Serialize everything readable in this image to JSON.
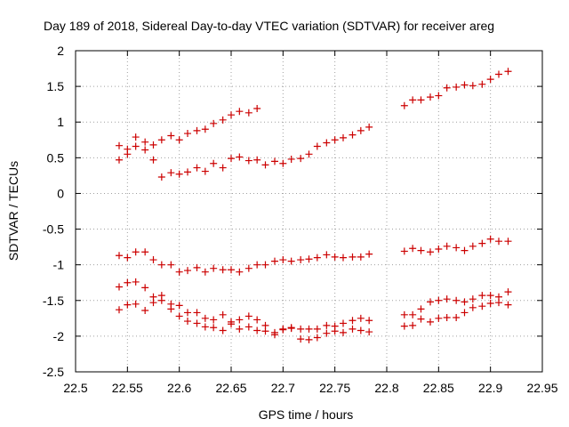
{
  "chart_data": {
    "type": "scatter",
    "title": "Day 189 of 2018, Sidereal Day-to-day VTEC variation (SDTVAR) for receiver areg",
    "xlabel": "GPS time / hours",
    "ylabel": "SDTVAR / TECUs",
    "xlim": [
      22.5,
      22.95
    ],
    "ylim": [
      -2.5,
      2
    ],
    "xticks": [
      22.5,
      22.55,
      22.6,
      22.65,
      22.7,
      22.75,
      22.8,
      22.85,
      22.9,
      22.95
    ],
    "xtick_labels": [
      "22.5",
      "22.55",
      "22.6",
      "22.65",
      "22.7",
      "22.75",
      "22.8",
      "22.85",
      "22.9",
      "22.95"
    ],
    "yticks": [
      -2.5,
      -2,
      -1.5,
      -1,
      -0.5,
      0,
      0.5,
      1,
      1.5,
      2
    ],
    "ytick_labels": [
      "-2.5",
      "-2",
      "-1.5",
      "-1",
      "-0.5",
      "0",
      "0.5",
      "1",
      "1.5",
      "2"
    ],
    "grid": true,
    "marker": "+",
    "color": "#cc0000",
    "series": [
      {
        "name": "series-1",
        "points": [
          [
            22.542,
            0.67
          ],
          [
            22.55,
            0.62
          ],
          [
            22.558,
            0.79
          ],
          [
            22.567,
            0.72
          ],
          [
            22.575,
            0.68
          ],
          [
            22.583,
            0.75
          ],
          [
            22.592,
            0.81
          ],
          [
            22.6,
            0.75
          ],
          [
            22.608,
            0.84
          ],
          [
            22.617,
            0.88
          ],
          [
            22.625,
            0.9
          ],
          [
            22.633,
            0.98
          ],
          [
            22.642,
            1.03
          ],
          [
            22.65,
            1.1
          ],
          [
            22.658,
            1.15
          ],
          [
            22.667,
            1.13
          ],
          [
            22.675,
            1.19
          ],
          [
            22.817,
            1.23
          ],
          [
            22.825,
            1.31
          ],
          [
            22.833,
            1.31
          ],
          [
            22.842,
            1.35
          ],
          [
            22.85,
            1.37
          ],
          [
            22.858,
            1.48
          ],
          [
            22.867,
            1.49
          ],
          [
            22.875,
            1.52
          ],
          [
            22.883,
            1.51
          ],
          [
            22.892,
            1.53
          ],
          [
            22.9,
            1.6
          ],
          [
            22.908,
            1.67
          ],
          [
            22.917,
            1.71
          ]
        ]
      },
      {
        "name": "series-2",
        "points": [
          [
            22.542,
            0.47
          ],
          [
            22.55,
            0.55
          ],
          [
            22.558,
            0.66
          ],
          [
            22.567,
            0.61
          ],
          [
            22.575,
            0.47
          ],
          [
            22.583,
            0.23
          ],
          [
            22.592,
            0.29
          ],
          [
            22.6,
            0.27
          ],
          [
            22.608,
            0.3
          ],
          [
            22.617,
            0.36
          ],
          [
            22.625,
            0.31
          ],
          [
            22.633,
            0.42
          ],
          [
            22.642,
            0.36
          ],
          [
            22.65,
            0.49
          ],
          [
            22.658,
            0.51
          ],
          [
            22.667,
            0.46
          ],
          [
            22.675,
            0.47
          ],
          [
            22.683,
            0.4
          ],
          [
            22.692,
            0.45
          ],
          [
            22.7,
            0.42
          ],
          [
            22.708,
            0.48
          ],
          [
            22.717,
            0.49
          ],
          [
            22.725,
            0.55
          ],
          [
            22.733,
            0.66
          ],
          [
            22.742,
            0.71
          ],
          [
            22.75,
            0.75
          ],
          [
            22.758,
            0.78
          ],
          [
            22.767,
            0.82
          ],
          [
            22.775,
            0.88
          ],
          [
            22.783,
            0.93
          ]
        ]
      },
      {
        "name": "series-3",
        "points": [
          [
            22.542,
            -0.87
          ],
          [
            22.55,
            -0.9
          ],
          [
            22.558,
            -0.82
          ],
          [
            22.567,
            -0.82
          ],
          [
            22.575,
            -0.93
          ],
          [
            22.583,
            -1.0
          ],
          [
            22.592,
            -1.0
          ],
          [
            22.6,
            -1.1
          ],
          [
            22.608,
            -1.08
          ],
          [
            22.617,
            -1.04
          ],
          [
            22.625,
            -1.1
          ],
          [
            22.633,
            -1.05
          ],
          [
            22.642,
            -1.07
          ],
          [
            22.65,
            -1.07
          ],
          [
            22.658,
            -1.1
          ],
          [
            22.667,
            -1.05
          ],
          [
            22.675,
            -1.0
          ],
          [
            22.683,
            -1.0
          ],
          [
            22.692,
            -0.95
          ],
          [
            22.7,
            -0.93
          ],
          [
            22.708,
            -0.95
          ],
          [
            22.717,
            -0.93
          ],
          [
            22.725,
            -0.92
          ],
          [
            22.733,
            -0.9
          ],
          [
            22.742,
            -0.86
          ],
          [
            22.75,
            -0.89
          ],
          [
            22.758,
            -0.9
          ],
          [
            22.767,
            -0.89
          ],
          [
            22.775,
            -0.89
          ],
          [
            22.783,
            -0.85
          ],
          [
            22.817,
            -0.81
          ],
          [
            22.825,
            -0.77
          ],
          [
            22.833,
            -0.8
          ],
          [
            22.842,
            -0.82
          ],
          [
            22.85,
            -0.78
          ],
          [
            22.858,
            -0.74
          ],
          [
            22.867,
            -0.76
          ],
          [
            22.875,
            -0.8
          ],
          [
            22.883,
            -0.74
          ],
          [
            22.892,
            -0.7
          ],
          [
            22.9,
            -0.64
          ],
          [
            22.908,
            -0.67
          ],
          [
            22.917,
            -0.67
          ]
        ]
      },
      {
        "name": "series-4",
        "points": [
          [
            22.542,
            -1.31
          ],
          [
            22.55,
            -1.25
          ],
          [
            22.558,
            -1.24
          ],
          [
            22.567,
            -1.32
          ],
          [
            22.575,
            -1.45
          ],
          [
            22.583,
            -1.43
          ],
          [
            22.592,
            -1.55
          ],
          [
            22.6,
            -1.57
          ],
          [
            22.608,
            -1.67
          ],
          [
            22.617,
            -1.67
          ],
          [
            22.625,
            -1.75
          ],
          [
            22.633,
            -1.77
          ],
          [
            22.642,
            -1.7
          ],
          [
            22.65,
            -1.8
          ],
          [
            22.658,
            -1.77
          ],
          [
            22.667,
            -1.72
          ],
          [
            22.675,
            -1.77
          ],
          [
            22.683,
            -1.85
          ],
          [
            22.692,
            -1.95
          ],
          [
            22.7,
            -1.9
          ],
          [
            22.708,
            -1.88
          ],
          [
            22.717,
            -1.9
          ],
          [
            22.725,
            -1.9
          ],
          [
            22.733,
            -1.9
          ],
          [
            22.742,
            -1.85
          ],
          [
            22.75,
            -1.86
          ],
          [
            22.758,
            -1.82
          ],
          [
            22.767,
            -1.78
          ],
          [
            22.775,
            -1.75
          ],
          [
            22.783,
            -1.78
          ],
          [
            22.817,
            -1.7
          ],
          [
            22.825,
            -1.7
          ],
          [
            22.833,
            -1.62
          ],
          [
            22.842,
            -1.52
          ],
          [
            22.85,
            -1.5
          ],
          [
            22.858,
            -1.48
          ],
          [
            22.867,
            -1.5
          ],
          [
            22.875,
            -1.52
          ],
          [
            22.883,
            -1.48
          ],
          [
            22.892,
            -1.43
          ],
          [
            22.9,
            -1.43
          ],
          [
            22.908,
            -1.45
          ],
          [
            22.917,
            -1.38
          ]
        ]
      },
      {
        "name": "series-5",
        "points": [
          [
            22.542,
            -1.63
          ],
          [
            22.55,
            -1.56
          ],
          [
            22.558,
            -1.55
          ],
          [
            22.567,
            -1.64
          ],
          [
            22.575,
            -1.53
          ],
          [
            22.583,
            -1.5
          ],
          [
            22.592,
            -1.62
          ],
          [
            22.6,
            -1.72
          ],
          [
            22.608,
            -1.79
          ],
          [
            22.617,
            -1.82
          ],
          [
            22.625,
            -1.87
          ],
          [
            22.633,
            -1.88
          ],
          [
            22.642,
            -1.92
          ],
          [
            22.65,
            -1.83
          ],
          [
            22.658,
            -1.9
          ],
          [
            22.667,
            -1.87
          ],
          [
            22.675,
            -1.92
          ],
          [
            22.683,
            -1.93
          ],
          [
            22.692,
            -1.98
          ],
          [
            22.7,
            -1.91
          ],
          [
            22.708,
            -1.89
          ],
          [
            22.717,
            -2.04
          ],
          [
            22.725,
            -2.05
          ],
          [
            22.733,
            -2.02
          ],
          [
            22.742,
            -1.96
          ],
          [
            22.75,
            -1.93
          ],
          [
            22.758,
            -1.95
          ],
          [
            22.767,
            -1.9
          ],
          [
            22.775,
            -1.92
          ],
          [
            22.783,
            -1.94
          ],
          [
            22.817,
            -1.86
          ],
          [
            22.825,
            -1.85
          ],
          [
            22.833,
            -1.76
          ],
          [
            22.842,
            -1.8
          ],
          [
            22.85,
            -1.75
          ],
          [
            22.858,
            -1.74
          ],
          [
            22.867,
            -1.74
          ],
          [
            22.875,
            -1.67
          ],
          [
            22.883,
            -1.6
          ],
          [
            22.892,
            -1.58
          ],
          [
            22.9,
            -1.54
          ],
          [
            22.908,
            -1.53
          ],
          [
            22.917,
            -1.56
          ]
        ]
      }
    ]
  }
}
